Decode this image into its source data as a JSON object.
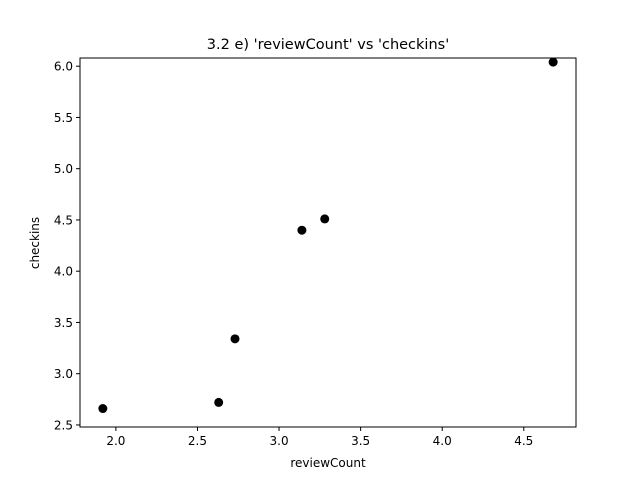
{
  "chart_data": {
    "type": "scatter",
    "title": "3.2 e) 'reviewCount' vs 'checkins'",
    "xlabel": "reviewCount",
    "ylabel": "checkins",
    "xlim": [
      1.78,
      4.82
    ],
    "ylim": [
      2.48,
      6.08
    ],
    "xticks": [
      "2.0",
      "2.5",
      "3.0",
      "3.5",
      "4.0",
      "4.5"
    ],
    "yticks": [
      "2.5",
      "3.0",
      "3.5",
      "4.0",
      "4.5",
      "5.0",
      "5.5",
      "6.0"
    ],
    "grid": false,
    "marker_color": "#000000",
    "points": [
      {
        "x": 1.92,
        "y": 2.66
      },
      {
        "x": 2.63,
        "y": 2.72
      },
      {
        "x": 2.73,
        "y": 3.34
      },
      {
        "x": 3.14,
        "y": 4.4
      },
      {
        "x": 3.28,
        "y": 4.51
      },
      {
        "x": 4.68,
        "y": 6.04
      }
    ]
  }
}
